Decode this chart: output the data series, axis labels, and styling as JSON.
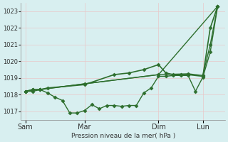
{
  "background_color": "#d8eff0",
  "grid_color": "#e8c8c8",
  "line_color": "#2d6e2d",
  "marker_color": "#2d6e2d",
  "xlabel": "Pression niveau de la mer( hPa )",
  "ylim": [
    1016.5,
    1023.5
  ],
  "yticks": [
    1017,
    1018,
    1019,
    1020,
    1021,
    1022,
    1023
  ],
  "xtick_labels": [
    "Sam",
    "Mar",
    "Dim",
    "Lun"
  ],
  "xtick_positions": [
    0,
    4,
    9,
    12
  ],
  "xlim": [
    -0.3,
    13.5
  ],
  "series": [
    {
      "x": [
        0,
        0.5,
        1,
        1.5,
        4,
        6,
        7,
        8,
        9,
        9.5,
        10,
        10.5,
        11,
        12,
        12.5,
        13
      ],
      "y": [
        1018.2,
        1018.3,
        1018.3,
        1018.4,
        1018.6,
        1019.2,
        1019.3,
        1019.5,
        1019.8,
        1019.3,
        1019.2,
        1019.2,
        1019.2,
        1019.1,
        1022.0,
        1023.3
      ],
      "linewidth": 1.2,
      "markersize": 2.5
    },
    {
      "x": [
        0,
        0.5,
        1,
        1.5,
        2,
        2.5,
        3,
        3.5,
        4,
        4.5,
        5,
        5.5,
        6,
        6.5,
        7,
        7.5,
        8,
        8.5,
        9,
        9.5,
        10,
        10.5,
        11,
        11.5,
        12,
        12.5,
        13
      ],
      "y": [
        1018.2,
        1018.2,
        1018.3,
        1018.1,
        1017.85,
        1017.65,
        1016.9,
        1016.9,
        1017.05,
        1017.4,
        1017.15,
        1017.35,
        1017.35,
        1017.3,
        1017.35,
        1017.35,
        1018.1,
        1018.4,
        1019.1,
        1019.1,
        1019.15,
        1019.15,
        1019.15,
        1018.2,
        1019.05,
        1020.55,
        1023.3
      ],
      "linewidth": 1.0,
      "markersize": 2.5
    },
    {
      "x": [
        0,
        0.5,
        1,
        4,
        9,
        11,
        12,
        12.5,
        13
      ],
      "y": [
        1018.2,
        1018.3,
        1018.3,
        1018.65,
        1019.2,
        1019.25,
        1019.15,
        1021.0,
        1023.3
      ],
      "linewidth": 1.0,
      "markersize": 2.5
    },
    {
      "x": [
        0,
        4,
        9,
        13
      ],
      "y": [
        1018.2,
        1018.65,
        1019.2,
        1023.3
      ],
      "linewidth": 1.0,
      "markersize": 0
    }
  ]
}
